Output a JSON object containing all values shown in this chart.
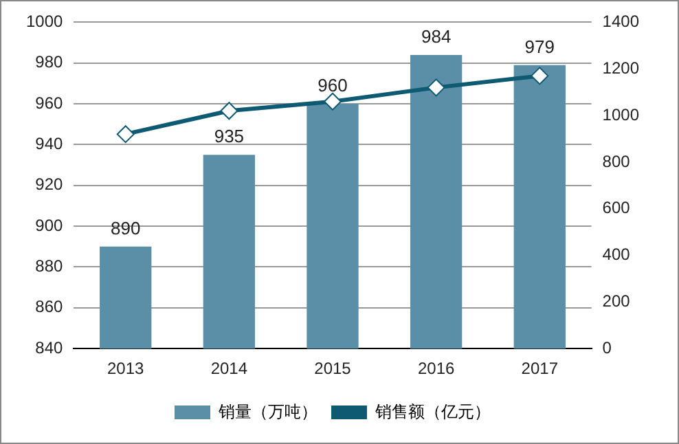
{
  "chart_data": {
    "type": "bar",
    "categories": [
      "2013",
      "2014",
      "2015",
      "2016",
      "2017"
    ],
    "series": [
      {
        "name": "销量（万吨）",
        "color": "#5b8fa8",
        "values": [
          890,
          935,
          960,
          984,
          979
        ],
        "value_labels": [
          "890",
          "935",
          "960",
          "984",
          "979"
        ]
      },
      {
        "name": "销售额（亿元）",
        "type": "line",
        "axis": "y2",
        "color": "#0e5a73",
        "values": [
          920,
          1020,
          1060,
          1120,
          1170
        ],
        "marker": "diamond"
      }
    ],
    "ylim": [
      840,
      1000
    ],
    "yticks": [
      840,
      860,
      880,
      900,
      920,
      940,
      960,
      980,
      1000
    ],
    "y2lim": [
      0,
      1400
    ],
    "y2ticks": [
      0,
      200,
      400,
      600,
      800,
      1000,
      1200,
      1400
    ],
    "grid": "y",
    "legend": "bottom"
  }
}
